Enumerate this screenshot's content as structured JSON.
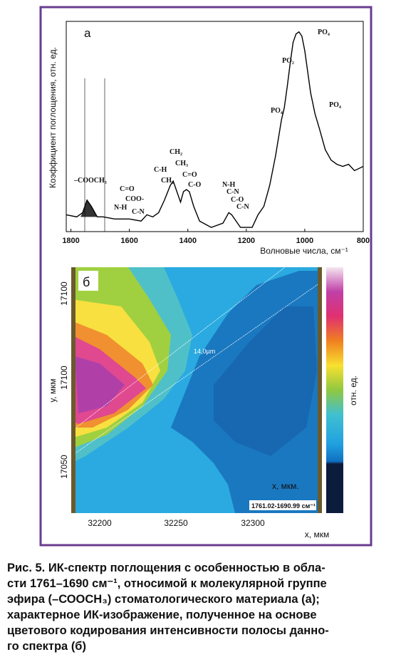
{
  "figure": {
    "panel_a": {
      "label": "а",
      "y_label": "Коэффициент поглощения, отн. ед.",
      "x_label": "Волновые числа, см⁻¹",
      "chart_data": {
        "type": "line",
        "x": [
          1816,
          1780,
          1760,
          1745,
          1730,
          1710,
          1690,
          1650,
          1600,
          1560,
          1540,
          1520,
          1500,
          1480,
          1460,
          1450,
          1440,
          1425,
          1415,
          1405,
          1395,
          1380,
          1360,
          1320,
          1280,
          1260,
          1250,
          1235,
          1220,
          1200,
          1180,
          1160,
          1140,
          1120,
          1100,
          1080,
          1070,
          1060,
          1050,
          1040,
          1030,
          1020,
          1010,
          1000,
          990,
          980,
          965,
          950,
          930,
          910,
          890,
          870,
          850,
          830,
          800
        ],
        "values": [
          0.08,
          0.07,
          0.09,
          0.15,
          0.12,
          0.07,
          0.07,
          0.06,
          0.06,
          0.05,
          0.08,
          0.07,
          0.09,
          0.15,
          0.22,
          0.24,
          0.2,
          0.14,
          0.19,
          0.2,
          0.19,
          0.12,
          0.05,
          0.02,
          0.04,
          0.09,
          0.08,
          0.05,
          0.02,
          0.02,
          0.02,
          0.08,
          0.12,
          0.22,
          0.36,
          0.53,
          0.59,
          0.69,
          0.8,
          0.9,
          0.94,
          0.95,
          0.93,
          0.86,
          0.76,
          0.66,
          0.56,
          0.49,
          0.39,
          0.34,
          0.32,
          0.31,
          0.32,
          0.29,
          0.31
        ],
        "color": "#000000",
        "xlim": [
          1816,
          800
        ],
        "ylim": [
          0,
          1
        ],
        "xticks": [
          1800,
          1600,
          1400,
          1200,
          1000,
          800
        ]
      },
      "annotations": [
        "–COOCH₃",
        "C=O",
        "COO-",
        "N-H",
        "C-N",
        "C-H",
        "CH₂",
        "CH₂",
        "CH₃",
        "C=O",
        "C-O",
        "N-H",
        "C-N",
        "C-O",
        "C-N",
        "PO₄",
        "PO₂",
        "PO₄",
        "PO₄"
      ]
    },
    "panel_b": {
      "label": "б",
      "y_label": "у, мкм",
      "x_label": "х, мкм",
      "colorbar_label": "отн. ед.",
      "measure": "14,0µm",
      "inner_label": "х, мкм.",
      "band": "1761.02-1690.99 см⁻¹",
      "x_ticks": [
        "32200",
        "32250",
        "32300"
      ],
      "y_ticks": [
        "17100",
        "17100",
        "17050"
      ]
    },
    "caption": [
      "Рис. 5. ИК-спектр поглощения с особенностью в обла-",
      "сти 1761–1690 см⁻¹, относимой к молекулярной группе",
      "эфира (–СООСН₃) стоматологического материала (а);",
      "характерное ИК-изображение, полученное на основе",
      "цветового кодирования интенсивности полосы данно-",
      "го спектра (б)"
    ]
  }
}
